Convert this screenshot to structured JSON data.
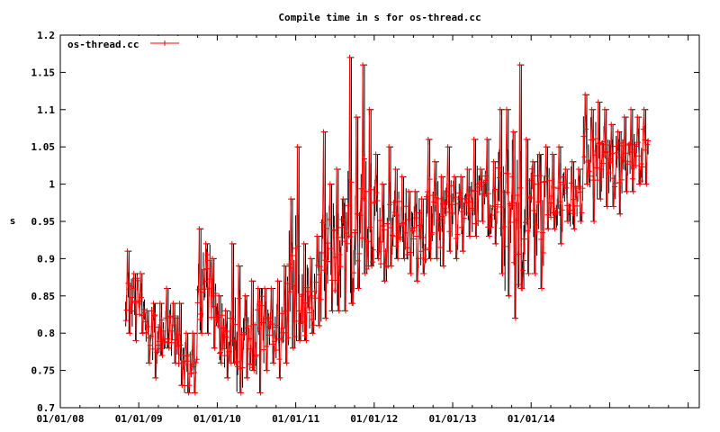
{
  "chart_data": {
    "type": "line",
    "title": "Compile time in s for os-thread.cc",
    "xlabel": "",
    "ylabel": "s",
    "ylim": [
      0.7,
      1.2
    ],
    "xlim": [
      "2008-01-01",
      "2016-02-15"
    ],
    "y_ticks": [
      "0.7",
      "0.75",
      "0.8",
      "0.85",
      "0.9",
      "0.95",
      "1",
      "1.05",
      "1.1",
      "1.15",
      "1.2"
    ],
    "x_ticks": [
      "01/01/08",
      "01/01/09",
      "01/01/10",
      "01/01/11",
      "01/01/12",
      "01/01/13",
      "01/01/14"
    ],
    "legend": {
      "placement": "top-left",
      "entries": [
        "os-thread.cc"
      ]
    },
    "grid": false,
    "series": [
      {
        "name": "os-thread.cc",
        "color": "#ff0000",
        "errorbar_color": "#000000",
        "x": [
          "2008-11",
          "2008-12",
          "2009-01",
          "2009-02",
          "2009-03",
          "2009-04",
          "2009-05",
          "2009-06",
          "2009-07",
          "2009-08",
          "2009-09",
          "2009-10",
          "2009-11",
          "2009-12",
          "2010-01",
          "2010-02",
          "2010-03",
          "2010-04",
          "2010-05",
          "2010-06",
          "2010-07",
          "2010-08",
          "2010-09",
          "2010-10",
          "2010-11",
          "2010-12",
          "2011-01",
          "2011-02",
          "2011-03",
          "2011-04",
          "2011-05",
          "2011-06",
          "2011-07",
          "2011-08",
          "2011-09",
          "2011-10",
          "2011-11",
          "2011-12",
          "2012-01",
          "2012-02",
          "2012-03",
          "2012-04",
          "2012-05",
          "2012-06",
          "2012-07",
          "2012-08",
          "2012-09",
          "2012-10",
          "2012-11",
          "2012-12",
          "2013-01",
          "2013-02",
          "2013-03",
          "2013-04",
          "2013-05",
          "2013-06",
          "2013-07",
          "2013-08",
          "2013-09",
          "2013-10",
          "2013-11",
          "2013-12",
          "2014-01",
          "2014-02",
          "2014-03",
          "2014-04",
          "2014-05",
          "2014-06",
          "2014-07",
          "2014-08",
          "2014-09",
          "2014-10",
          "2014-11",
          "2014-12",
          "2015-01",
          "2015-02",
          "2015-03",
          "2015-04",
          "2015-05",
          "2015-06"
        ],
        "values": [
          0.85,
          0.85,
          0.84,
          0.8,
          0.8,
          0.8,
          0.81,
          0.8,
          0.78,
          0.75,
          0.76,
          0.86,
          0.87,
          0.84,
          0.8,
          0.79,
          0.79,
          0.8,
          0.8,
          0.79,
          0.81,
          0.8,
          0.8,
          0.8,
          0.83,
          0.85,
          0.86,
          0.83,
          0.84,
          0.87,
          0.89,
          0.92,
          0.9,
          0.91,
          0.92,
          0.95,
          0.96,
          0.94,
          0.95,
          0.92,
          0.93,
          0.95,
          0.94,
          0.93,
          0.93,
          0.92,
          0.96,
          0.95,
          0.95,
          0.97,
          0.95,
          0.97,
          0.98,
          0.97,
          0.99,
          0.98,
          0.97,
          0.97,
          0.96,
          0.94,
          0.95,
          0.97,
          0.98,
          0.96,
          0.99,
          0.98,
          0.99,
          0.98,
          0.98,
          0.98,
          1.05,
          1.03,
          1.03,
          1.03,
          1.02,
          1.03,
          1.03,
          1.03,
          1.03,
          1.05
        ],
        "low": [
          0.8,
          0.79,
          0.8,
          0.76,
          0.74,
          0.77,
          0.78,
          0.76,
          0.73,
          0.72,
          0.72,
          0.8,
          0.8,
          0.78,
          0.76,
          0.74,
          0.76,
          0.72,
          0.74,
          0.75,
          0.72,
          0.75,
          0.76,
          0.74,
          0.76,
          0.78,
          0.79,
          0.79,
          0.8,
          0.81,
          0.82,
          0.83,
          0.83,
          0.83,
          0.84,
          0.86,
          0.88,
          0.89,
          0.9,
          0.87,
          0.89,
          0.9,
          0.9,
          0.88,
          0.87,
          0.88,
          0.9,
          0.9,
          0.89,
          0.91,
          0.9,
          0.91,
          0.93,
          0.93,
          0.95,
          0.93,
          0.92,
          0.88,
          0.85,
          0.82,
          0.86,
          0.88,
          0.88,
          0.86,
          0.94,
          0.94,
          0.92,
          0.95,
          0.94,
          0.95,
          1.0,
          0.95,
          0.98,
          0.97,
          0.97,
          0.96,
          0.99,
          0.99,
          1.0,
          1.0
        ],
        "high": [
          0.91,
          0.88,
          0.88,
          0.83,
          0.84,
          0.84,
          0.86,
          0.84,
          0.84,
          0.8,
          0.8,
          0.94,
          0.92,
          0.9,
          0.85,
          0.83,
          0.92,
          0.89,
          0.85,
          0.87,
          0.86,
          0.86,
          0.86,
          0.87,
          0.89,
          0.98,
          1.05,
          0.92,
          0.9,
          0.93,
          1.07,
          1.0,
          1.02,
          0.98,
          1.17,
          1.09,
          1.16,
          1.1,
          1.04,
          1.0,
          1.05,
          1.02,
          1.01,
          0.99,
          0.99,
          0.98,
          1.06,
          1.03,
          1.01,
          1.05,
          1.01,
          1.01,
          1.02,
          1.06,
          1.02,
          1.06,
          1.03,
          1.1,
          1.1,
          1.07,
          1.16,
          1.06,
          1.03,
          1.04,
          1.05,
          1.04,
          1.05,
          1.02,
          1.03,
          1.02,
          1.12,
          1.1,
          1.11,
          1.1,
          1.08,
          1.07,
          1.09,
          1.1,
          1.09,
          1.1
        ]
      }
    ]
  }
}
